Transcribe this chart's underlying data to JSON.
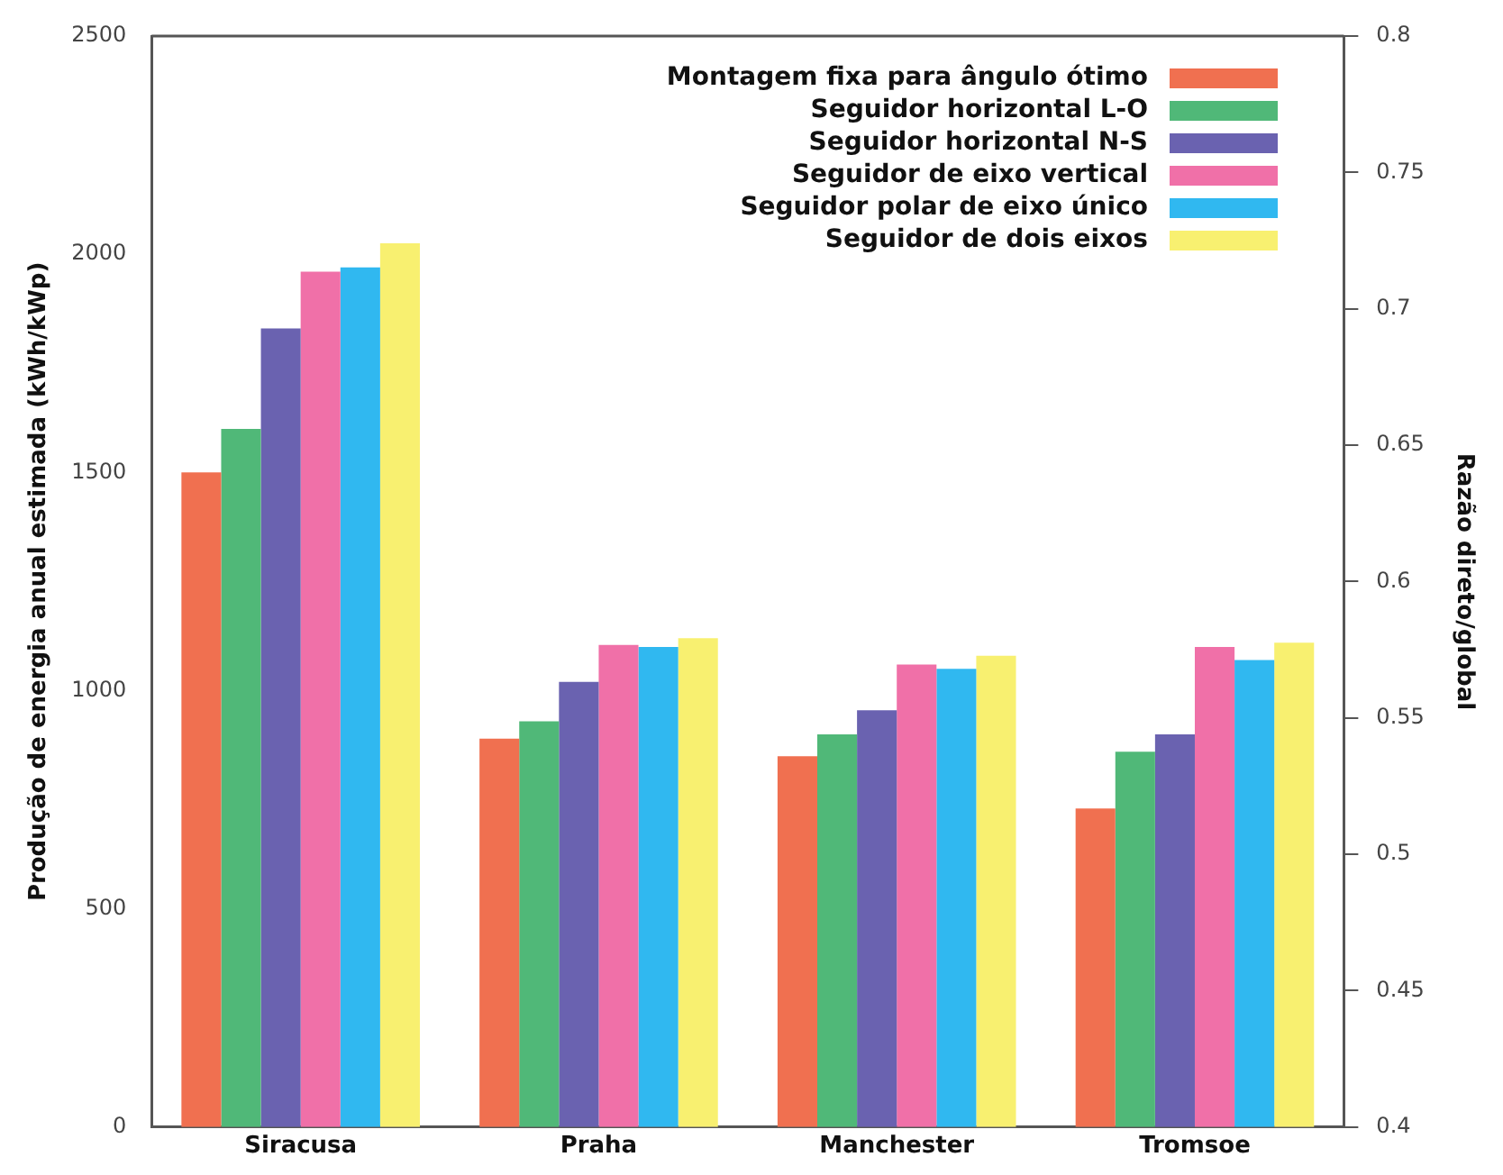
{
  "chart_data": {
    "type": "bar",
    "ylabel": "Produção de energia anual estimada (kWh/kWp)",
    "y2label": "Razão direto/global",
    "categories": [
      "Siracusa",
      "Praha",
      "Manchester",
      "Tromsoe"
    ],
    "series": [
      {
        "name": "Montagem fixa para ângulo ótimo",
        "color": "#f07050",
        "values": [
          1500,
          890,
          850,
          730
        ]
      },
      {
        "name": "Seguidor horizontal L-O",
        "color": "#50b878",
        "values": [
          1600,
          930,
          900,
          860
        ]
      },
      {
        "name": "Seguidor horizontal N-S",
        "color": "#6a62b0",
        "values": [
          1830,
          1020,
          955,
          900
        ]
      },
      {
        "name": "Seguidor de eixo vertical",
        "color": "#f070a8",
        "values": [
          1960,
          1105,
          1060,
          1100
        ]
      },
      {
        "name": "Seguidor polar de eixo único",
        "color": "#30b8f0",
        "values": [
          1970,
          1100,
          1050,
          1070
        ]
      },
      {
        "name": "Seguidor de dois eixos",
        "color": "#f8f070",
        "values": [
          2025,
          1120,
          1080,
          1110
        ]
      }
    ],
    "ylim": [
      0,
      2500
    ],
    "yticks": [
      0,
      500,
      1000,
      1500,
      2000,
      2500
    ],
    "y2lim": [
      0.4,
      0.8
    ],
    "y2ticks": [
      0.4,
      0.45,
      0.5,
      0.55,
      0.6,
      0.65,
      0.7,
      0.75,
      0.8
    ],
    "grid": false,
    "legend": "top right"
  }
}
